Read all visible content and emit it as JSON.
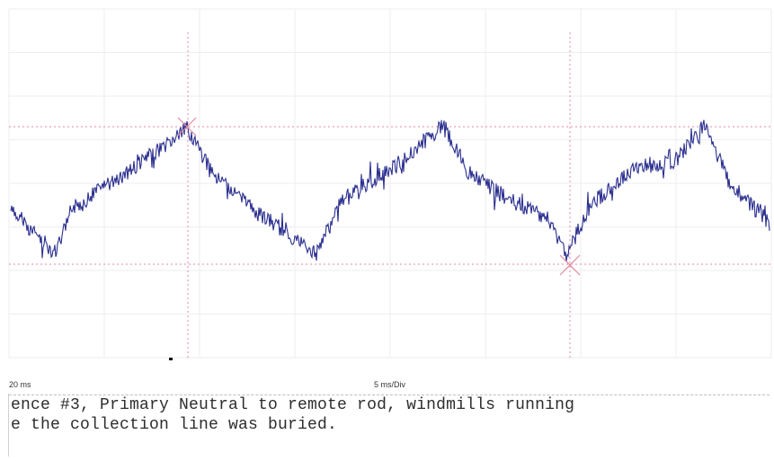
{
  "scope": {
    "time_start_label": "20 ms",
    "time_per_div_label": "5 ms/Div",
    "trace_color": "#2b2f8f",
    "cursor_color": "#e08aa0",
    "grid_color": "#eeeeee"
  },
  "caption": {
    "line1": "ence #3, Primary Neutral to remote rod, windmills running",
    "line2": "e the collection line was buried."
  },
  "chart_data": {
    "type": "line",
    "title": "",
    "xlabel": "5 ms/Div",
    "ylabel": "",
    "x_start_label": "20 ms",
    "grid": true,
    "cursors": {
      "vertical": [
        "cursor-1",
        "cursor-2"
      ],
      "horizontal": [
        "max-level",
        "min-level"
      ]
    },
    "series": [
      {
        "name": "",
        "shape": "triangle-like waveform with noise",
        "peaks": 3,
        "troughs": 3
      }
    ]
  }
}
